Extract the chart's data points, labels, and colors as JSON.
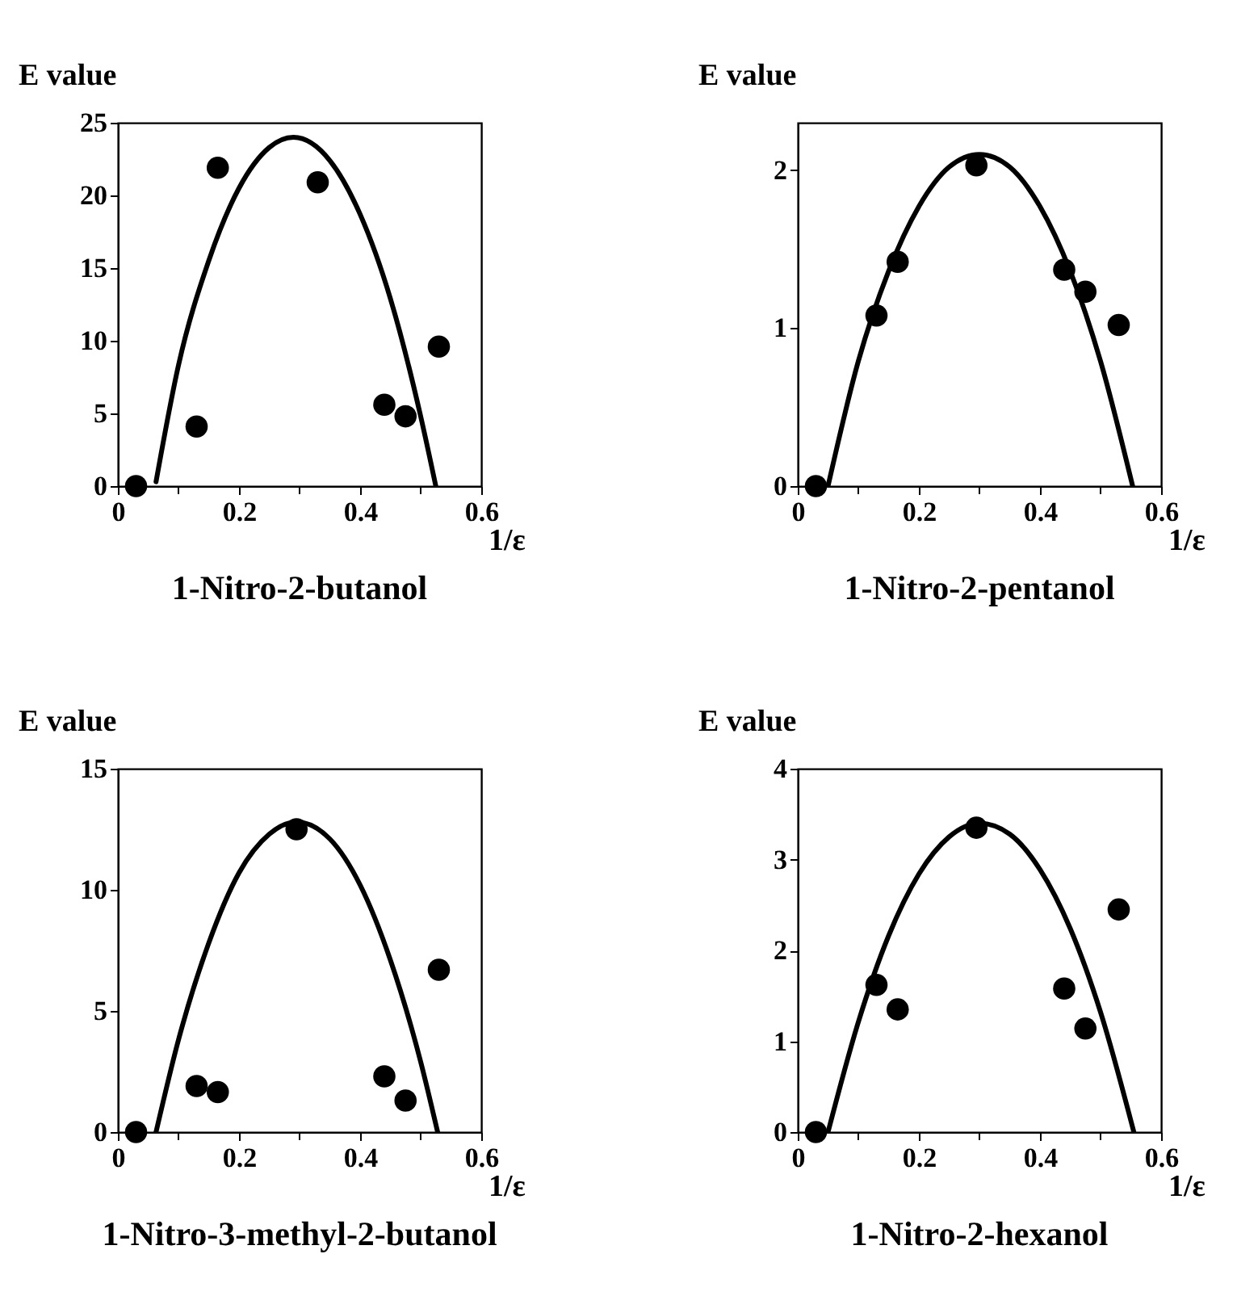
{
  "chart_data": [
    {
      "type": "scatter",
      "title": "1-Nitro-2-butanol",
      "xlabel": "1/ε",
      "ylabel": "E value",
      "xlim": [
        0,
        0.6
      ],
      "ylim": [
        0,
        25
      ],
      "xticks": [
        0,
        {
          "value": 0.1,
          "label": null
        },
        0.2,
        {
          "value": 0.3,
          "label": null
        },
        0.4,
        {
          "value": 0.5,
          "label": null
        },
        0.6
      ],
      "yticks": [
        0,
        5,
        10,
        15,
        20,
        25
      ],
      "series": [
        {
          "type": "scatter",
          "marker": "circle",
          "color": "#000000",
          "x": [
            0.03,
            0.13,
            0.165,
            0.33,
            0.44,
            0.475,
            0.53
          ],
          "values": [
            0,
            4.1,
            21.9,
            20.9,
            5.6,
            4.8,
            9.6
          ]
        },
        {
          "type": "line",
          "color": "#000000",
          "x": [
            0.063,
            0.1,
            0.15,
            0.2,
            0.25,
            0.29,
            0.35,
            0.4,
            0.45,
            0.5,
            0.525
          ],
          "values": [
            0.3,
            8.3,
            15.5,
            20.5,
            23.3,
            24,
            22.4,
            18.7,
            12.9,
            4.8,
            0
          ]
        }
      ]
    },
    {
      "type": "scatter",
      "title": "1-Nitro-2-pentanol",
      "xlabel": "1/ε",
      "ylabel": "E value",
      "xlim": [
        0,
        0.6
      ],
      "ylim": [
        0,
        2.3
      ],
      "xticks": [
        0,
        {
          "value": 0.1,
          "label": null
        },
        0.2,
        {
          "value": 0.3,
          "label": null
        },
        0.4,
        {
          "value": 0.5,
          "label": null
        },
        0.6
      ],
      "yticks": [
        0,
        1,
        2
      ],
      "series": [
        {
          "type": "scatter",
          "marker": "circle",
          "color": "#000000",
          "x": [
            0.03,
            0.13,
            0.165,
            0.295,
            0.44,
            0.475,
            0.53
          ],
          "values": [
            0,
            1.08,
            1.42,
            2.03,
            1.37,
            1.23,
            1.02
          ]
        },
        {
          "type": "line",
          "color": "#000000",
          "x": [
            0.05,
            0.1,
            0.15,
            0.2,
            0.25,
            0.3,
            0.35,
            0.4,
            0.45,
            0.5,
            0.553
          ],
          "values": [
            0,
            0.79,
            1.36,
            1.77,
            2.02,
            2.1,
            2.02,
            1.77,
            1.36,
            0.79,
            0
          ]
        }
      ]
    },
    {
      "type": "scatter",
      "title": "1-Nitro-3-methyl-2-butanol",
      "xlabel": "1/ε",
      "ylabel": "E value",
      "xlim": [
        0,
        0.6
      ],
      "ylim": [
        0,
        15
      ],
      "xticks": [
        0,
        {
          "value": 0.1,
          "label": null
        },
        0.2,
        {
          "value": 0.3,
          "label": null
        },
        0.4,
        {
          "value": 0.5,
          "label": null
        },
        0.6
      ],
      "yticks": [
        0,
        5,
        10,
        15
      ],
      "series": [
        {
          "type": "scatter",
          "marker": "circle",
          "color": "#000000",
          "x": [
            0.03,
            0.13,
            0.165,
            0.295,
            0.44,
            0.475,
            0.53
          ],
          "values": [
            0,
            1.9,
            1.65,
            12.5,
            2.3,
            1.3,
            6.7
          ]
        },
        {
          "type": "line",
          "color": "#000000",
          "x": [
            0.063,
            0.1,
            0.15,
            0.2,
            0.25,
            0.295,
            0.35,
            0.4,
            0.45,
            0.5,
            0.528
          ],
          "values": [
            0,
            3.8,
            7.8,
            10.7,
            12.3,
            12.8,
            12.1,
            10.2,
            7.1,
            2.9,
            0
          ]
        }
      ]
    },
    {
      "type": "scatter",
      "title": "1-Nitro-2-hexanol",
      "xlabel": "1/ε",
      "ylabel": "E value",
      "xlim": [
        0,
        0.6
      ],
      "ylim": [
        0,
        4
      ],
      "xticks": [
        0,
        {
          "value": 0.1,
          "label": null
        },
        0.2,
        {
          "value": 0.3,
          "label": null
        },
        0.4,
        {
          "value": 0.5,
          "label": null
        },
        0.6
      ],
      "yticks": [
        0,
        1,
        2,
        3,
        4
      ],
      "series": [
        {
          "type": "scatter",
          "marker": "circle",
          "color": "#000000",
          "x": [
            0.03,
            0.13,
            0.165,
            0.295,
            0.44,
            0.475,
            0.53
          ],
          "values": [
            0,
            1.62,
            1.35,
            3.35,
            1.58,
            1.14,
            2.45
          ]
        },
        {
          "type": "line",
          "color": "#000000",
          "x": [
            0.05,
            0.1,
            0.15,
            0.2,
            0.25,
            0.3,
            0.35,
            0.4,
            0.45,
            0.5,
            0.555
          ],
          "values": [
            0,
            1.21,
            2.16,
            2.84,
            3.25,
            3.4,
            3.28,
            2.89,
            2.24,
            1.32,
            0
          ]
        }
      ]
    }
  ]
}
